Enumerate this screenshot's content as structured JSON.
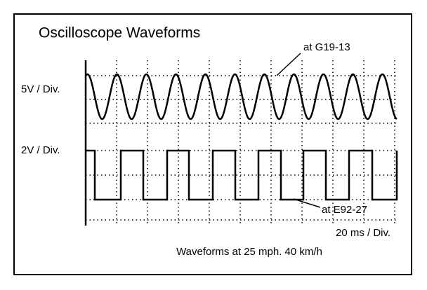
{
  "title": "Oscilloscope Waveforms",
  "channels": [
    {
      "scale": "5V / Div.",
      "probe": "at G19-13"
    },
    {
      "scale": "2V / Div.",
      "probe": "at E92-27"
    }
  ],
  "timebase": "20 ms / Div.",
  "caption": "Waveforms at 25 mph. 40 km/h"
}
